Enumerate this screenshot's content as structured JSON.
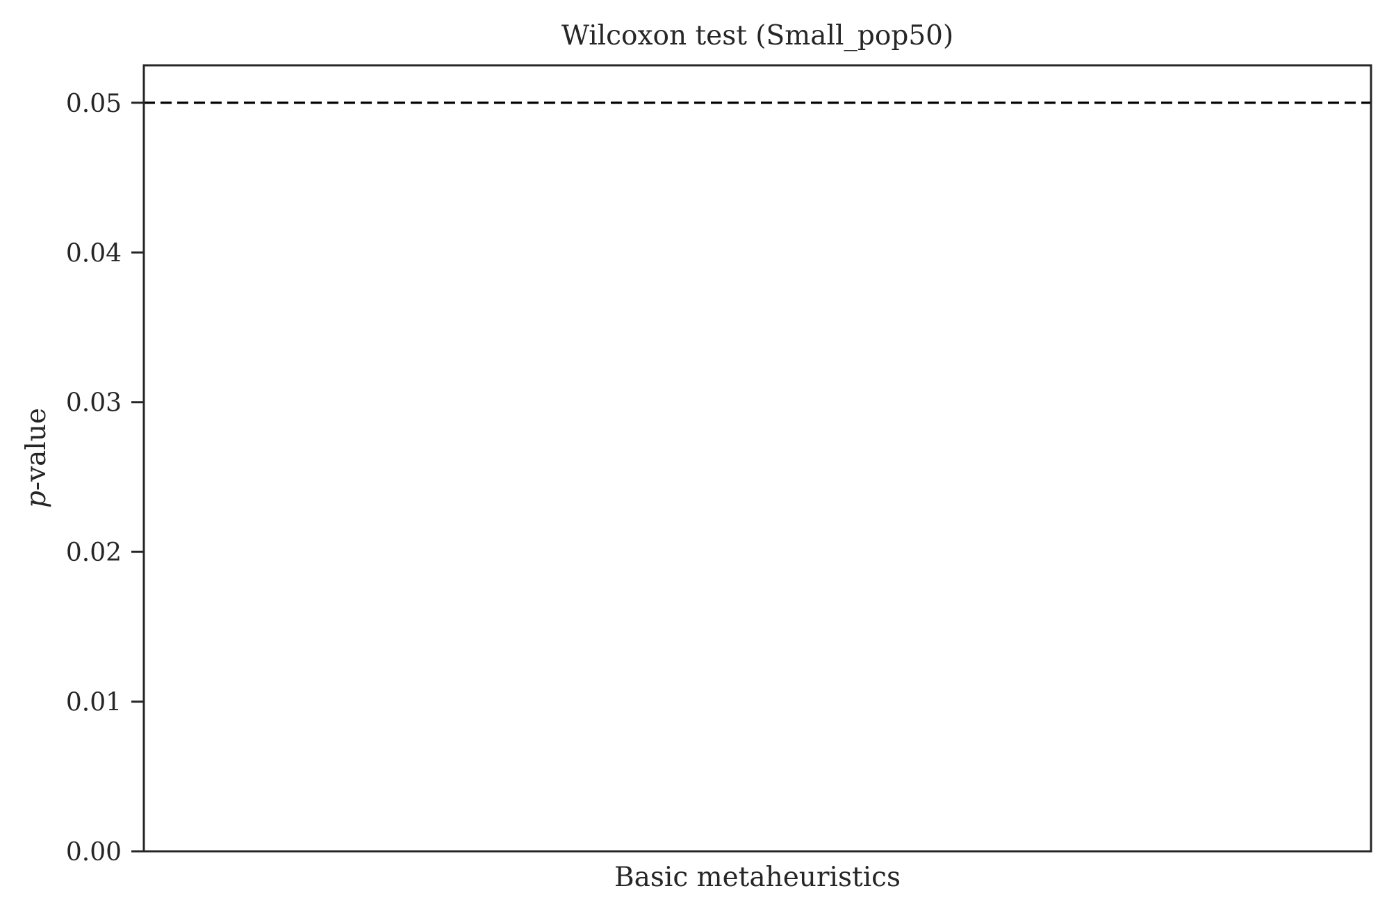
{
  "chart_data": {
    "type": "bar",
    "title": "Wilcoxon test (Small_pop50)",
    "xlabel": "Basic metaheuristics",
    "ylabel_italic": "p",
    "ylabel_rest": "-value",
    "categories": [],
    "series": [],
    "ylim": [
      0,
      0.0525
    ],
    "yticks": [
      0.0,
      0.01,
      0.02,
      0.03,
      0.04,
      0.05
    ],
    "ytick_labels": [
      "0.00",
      "0.01",
      "0.02",
      "0.03",
      "0.04",
      "0.05"
    ],
    "threshold": 0.05,
    "threshold_style": "dashed",
    "grid": false,
    "colors": {
      "axis": "#262626",
      "threshold": "#000000",
      "background": "#ffffff"
    }
  }
}
